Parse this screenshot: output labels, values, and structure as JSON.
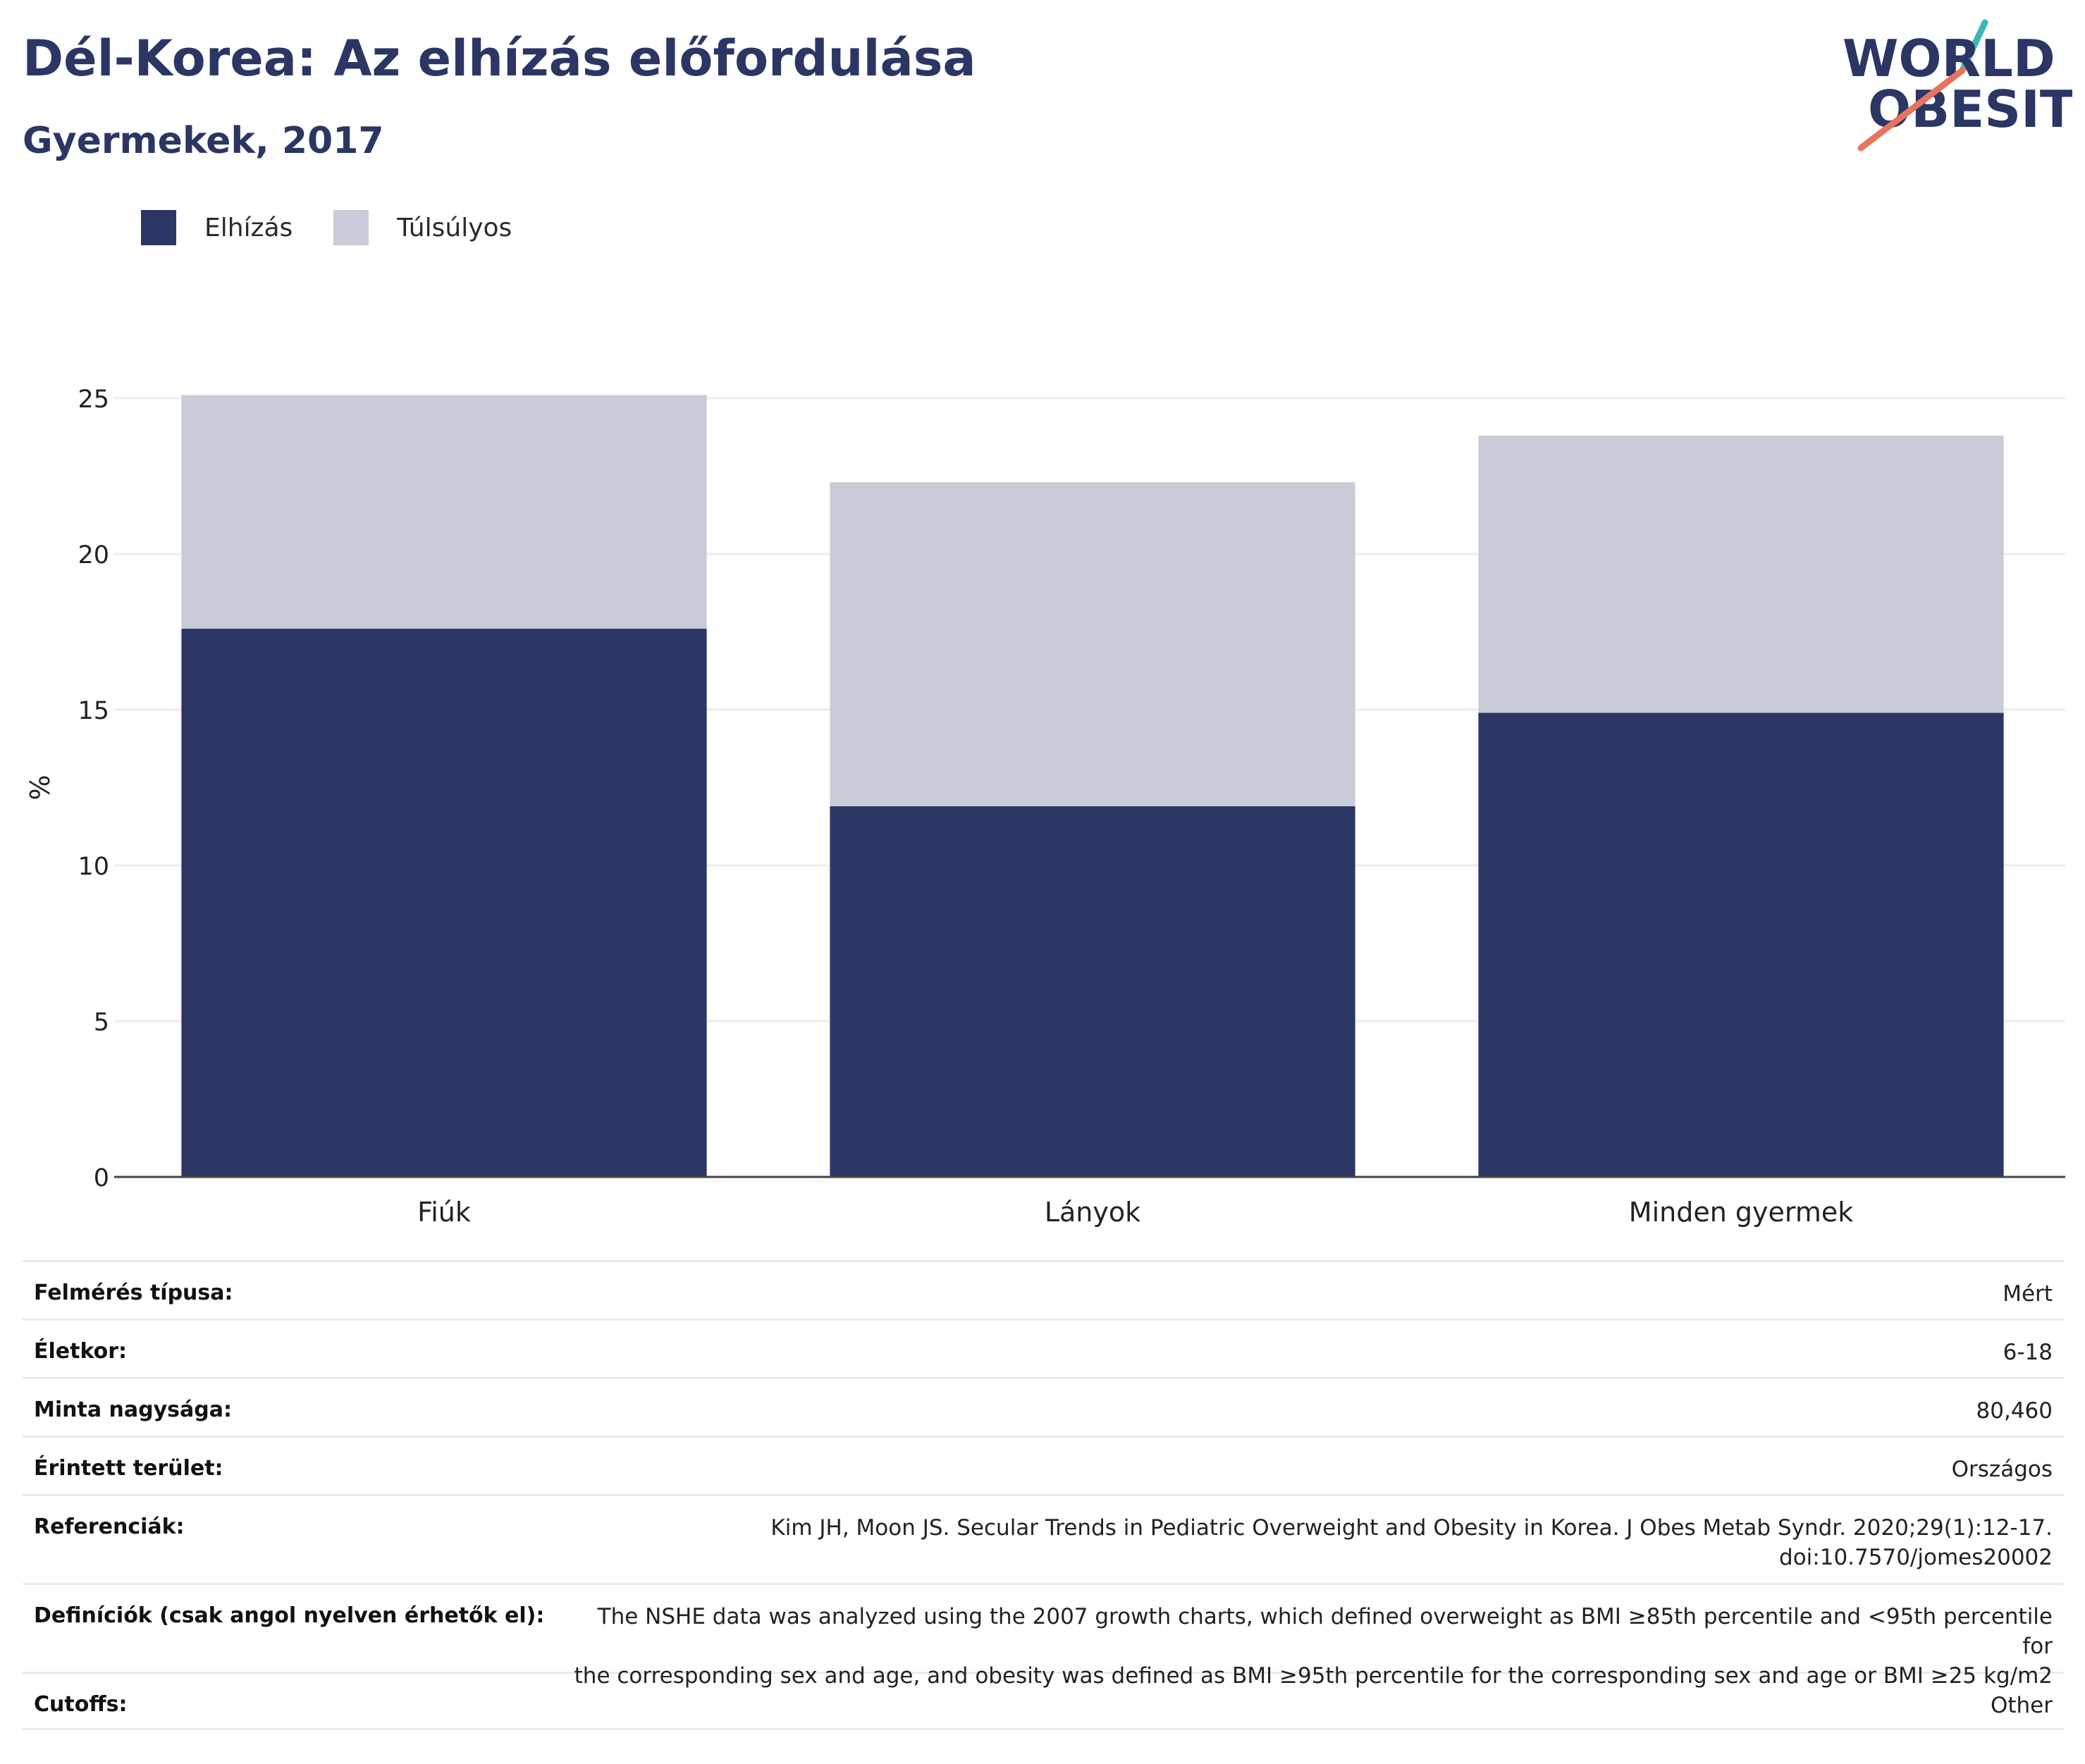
{
  "header": {
    "title": "Dél-Korea: Az elhízás előfordulása",
    "subtitle": "Gyermekek, 2017"
  },
  "logo": {
    "line1": "WORLD",
    "line2": "OBESITY",
    "icon": "world-obesity-logo"
  },
  "legend": [
    {
      "label": "Elhízás",
      "color": "#2b3664"
    },
    {
      "label": "Túlsúlyos",
      "color": "#c9ccd8"
    }
  ],
  "chart_data": {
    "type": "bar",
    "stacked": true,
    "categories": [
      "Fiúk",
      "Lányok",
      "Minden gyermek"
    ],
    "series": [
      {
        "name": "Elhízás",
        "values": [
          17.6,
          11.9,
          14.9
        ],
        "color": "#2b3664"
      },
      {
        "name": "Túlsúlyos",
        "values": [
          7.5,
          10.4,
          8.9
        ],
        "color": "#c9ccd8"
      }
    ],
    "ylabel": "%",
    "ylim": [
      0,
      25
    ],
    "yticks": [
      0,
      5,
      10,
      15,
      20,
      25
    ],
    "grid": true,
    "legend_position": "top-left"
  },
  "details": [
    {
      "label": "Felmérés típusa:",
      "value": "Mért"
    },
    {
      "label": "Életkor:",
      "value": "6-18"
    },
    {
      "label": "Minta nagysága:",
      "value": "80,460"
    },
    {
      "label": "Érintett terület:",
      "value": "Országos"
    },
    {
      "label": "Referenciák:",
      "value": "Kim JH, Moon JS. Secular Trends in Pediatric Overweight and Obesity in Korea. J Obes Metab Syndr. 2020;29(1):12-17.",
      "value2": "doi:10.7570/jomes20002"
    },
    {
      "label": "Definíciók (csak angol nyelven érhetők el):",
      "value": "The NSHE data was analyzed using the 2007 growth charts, which defined overweight as BMI ≥85th percentile and <95th percentile for",
      "value2": "the corresponding sex and age, and obesity was defined as BMI ≥95th percentile for the corresponding sex and age or BMI ≥25 kg/m2"
    },
    {
      "label": "Cutoffs:",
      "value": "Other"
    }
  ]
}
